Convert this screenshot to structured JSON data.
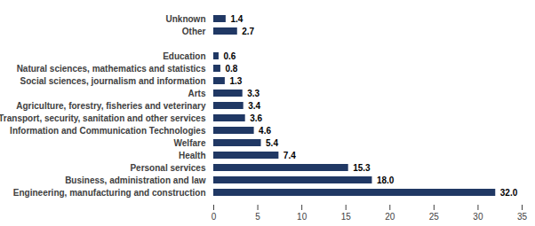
{
  "chart_data": {
    "type": "bar",
    "orientation": "horizontal",
    "categories": [
      "Unknown",
      "Other",
      null,
      "Education",
      "Natural sciences, mathematics and statistics",
      "Social sciences, journalism and information",
      "Arts",
      "Agriculture, forestry, fisheries and veterinary",
      "Transport, security, sanitation and other services",
      "Information and Communication Technologies",
      "Welfare",
      "Health",
      "Personal services",
      "Business, administration and law",
      "Engineering, manufacturing and construction"
    ],
    "values": [
      1.4,
      2.7,
      null,
      0.6,
      0.8,
      1.3,
      3.3,
      3.4,
      3.6,
      4.6,
      5.4,
      7.4,
      15.3,
      18.0,
      32.0
    ],
    "value_labels": [
      "1.4",
      "2.7",
      null,
      "0.6",
      "0.8",
      "1.3",
      "3.3",
      "3.4",
      "3.6",
      "4.6",
      "5.4",
      "7.4",
      "15.3",
      "18.0",
      "32.0"
    ],
    "color": "#203864",
    "xlim": [
      0,
      35
    ],
    "xticks": [
      0,
      5,
      10,
      15,
      20,
      25,
      30,
      35
    ],
    "grid": false,
    "data_labels": true
  }
}
